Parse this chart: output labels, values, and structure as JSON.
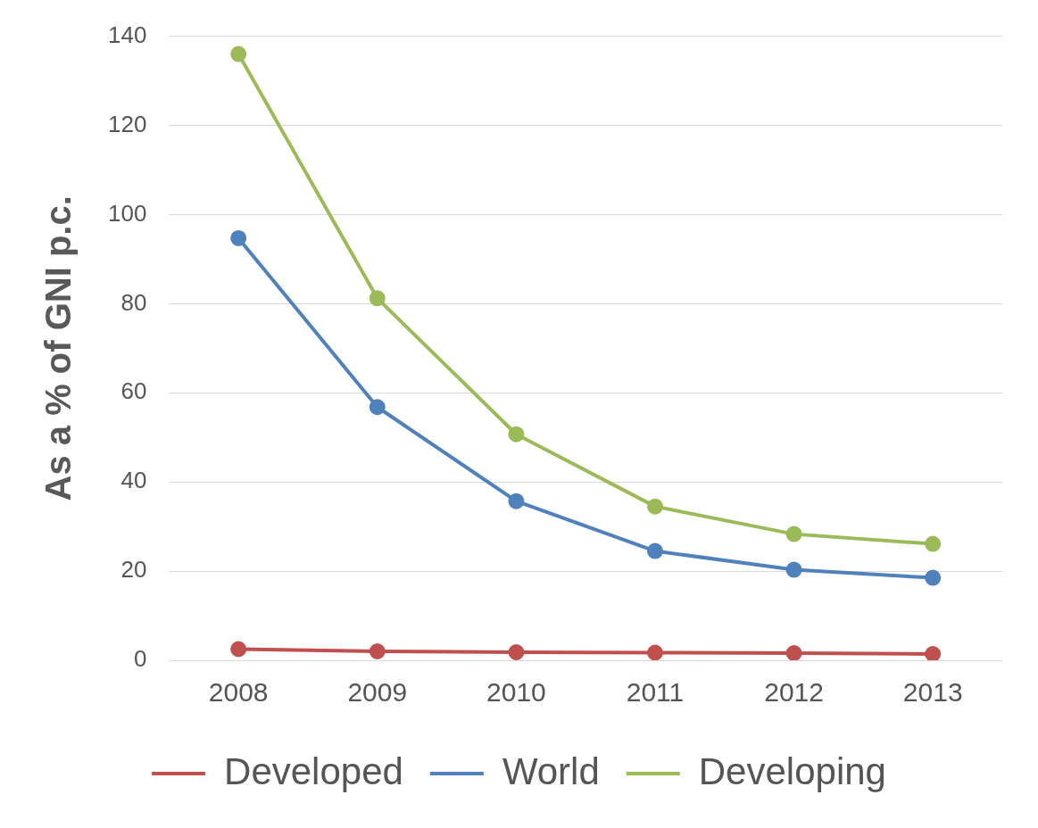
{
  "chart_data": {
    "type": "line",
    "ylabel": "As a % of GNI p.c.",
    "categories": [
      "2008",
      "2009",
      "2010",
      "2011",
      "2012",
      "2013"
    ],
    "series": [
      {
        "name": "Developed",
        "color": "#c0504d",
        "values": [
          2.5,
          2.0,
          1.8,
          1.7,
          1.6,
          1.4
        ]
      },
      {
        "name": "World",
        "color": "#4f81bd",
        "values": [
          94.7,
          56.8,
          35.7,
          24.5,
          20.3,
          18.5
        ]
      },
      {
        "name": "Developing",
        "color": "#9bbb59",
        "values": [
          136,
          81.2,
          50.7,
          34.5,
          28.3,
          26.1
        ]
      }
    ],
    "ylim": [
      0,
      140
    ],
    "yticks": [
      0,
      20,
      40,
      60,
      80,
      100,
      120,
      140
    ],
    "grid": "y",
    "legend": "bottom",
    "marker": "circle",
    "line_style": "solid"
  }
}
